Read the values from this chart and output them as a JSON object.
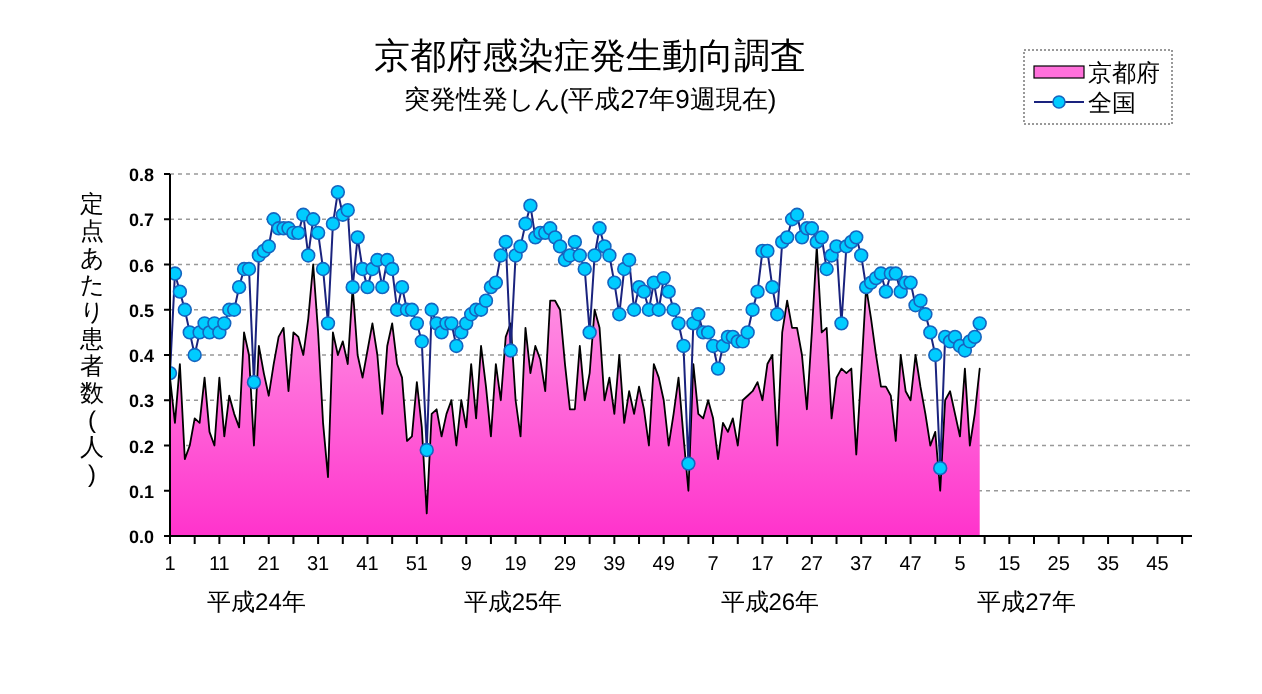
{
  "chart_data": {
    "type": "line",
    "title": "京都府感染症発生動向調査",
    "subtitle": "突発性発しん(平成27年9週現在)",
    "ylabel": "定点あたり患者数(人)",
    "annotations": [
      "平成24年",
      "平成25年",
      "平成26年",
      "平成27年"
    ],
    "categories": [
      "1",
      null,
      null,
      null,
      null,
      null,
      null,
      null,
      null,
      null,
      "11",
      null,
      null,
      null,
      null,
      null,
      null,
      null,
      null,
      null,
      "21",
      null,
      null,
      null,
      null,
      null,
      null,
      null,
      null,
      null,
      "31",
      null,
      null,
      null,
      null,
      null,
      null,
      null,
      null,
      null,
      "41",
      null,
      null,
      null,
      null,
      null,
      null,
      null,
      null,
      null,
      "51",
      null,
      null,
      null,
      null,
      null,
      null,
      null,
      null,
      null,
      "9",
      null,
      null,
      null,
      null,
      null,
      null,
      null,
      null,
      null,
      "19",
      null,
      null,
      null,
      null,
      null,
      null,
      null,
      null,
      null,
      "29",
      null,
      null,
      null,
      null,
      null,
      null,
      null,
      null,
      null,
      "39",
      null,
      null,
      null,
      null,
      null,
      null,
      null,
      null,
      null,
      "49",
      null,
      null,
      null,
      null,
      null,
      null,
      null,
      null,
      null,
      "7",
      null,
      null,
      null,
      null,
      null,
      null,
      null,
      null,
      null,
      "17",
      null,
      null,
      null,
      null,
      null,
      null,
      null,
      null,
      null,
      "27",
      null,
      null,
      null,
      null,
      null,
      null,
      null,
      null,
      null,
      "37",
      null,
      null,
      null,
      null,
      null,
      null,
      null,
      null,
      null,
      "47",
      null,
      null,
      null,
      null,
      null,
      null,
      null,
      null,
      null,
      "5",
      null,
      null,
      null,
      null,
      null,
      null,
      null,
      null,
      null,
      "15",
      null,
      null,
      null,
      null,
      null,
      null,
      null,
      null,
      null,
      "25",
      null,
      null,
      null,
      null,
      null,
      null,
      null,
      null,
      null,
      "35",
      null,
      null,
      null,
      null,
      null,
      null,
      null,
      null,
      null,
      "45",
      null,
      null,
      null,
      null,
      null,
      null,
      null
    ],
    "series": [
      {
        "name": "京都府",
        "type": "area",
        "color": "#ff33cc",
        "values": [
          0.35,
          0.25,
          0.38,
          0.17,
          0.2,
          0.26,
          0.25,
          0.35,
          0.23,
          0.2,
          0.35,
          0.22,
          0.31,
          0.27,
          0.24,
          0.45,
          0.4,
          0.2,
          0.42,
          0.36,
          0.31,
          0.38,
          0.44,
          0.46,
          0.32,
          0.45,
          0.44,
          0.4,
          0.48,
          0.6,
          0.45,
          0.25,
          0.13,
          0.45,
          0.4,
          0.43,
          0.38,
          0.55,
          0.4,
          0.35,
          0.41,
          0.47,
          0.4,
          0.27,
          0.42,
          0.47,
          0.38,
          0.35,
          0.21,
          0.22,
          0.34,
          0.24,
          0.05,
          0.27,
          0.28,
          0.22,
          0.27,
          0.3,
          0.2,
          0.3,
          0.24,
          0.38,
          0.26,
          0.42,
          0.33,
          0.22,
          0.38,
          0.3,
          0.44,
          0.47,
          0.3,
          0.22,
          0.46,
          0.36,
          0.42,
          0.39,
          0.32,
          0.52,
          0.52,
          0.5,
          0.38,
          0.28,
          0.28,
          0.42,
          0.3,
          0.36,
          0.5,
          0.46,
          0.3,
          0.35,
          0.27,
          0.4,
          0.25,
          0.32,
          0.27,
          0.33,
          0.28,
          0.2,
          0.38,
          0.35,
          0.3,
          0.2,
          0.27,
          0.35,
          0.22,
          0.1,
          0.38,
          0.27,
          0.26,
          0.3,
          0.26,
          0.17,
          0.25,
          0.23,
          0.26,
          0.2,
          0.3,
          0.31,
          0.32,
          0.34,
          0.3,
          0.38,
          0.4,
          0.2,
          0.45,
          0.52,
          0.46,
          0.46,
          0.4,
          0.28,
          0.45,
          0.64,
          0.45,
          0.46,
          0.26,
          0.35,
          0.37,
          0.36,
          0.37,
          0.18,
          0.36,
          0.55,
          0.48,
          0.4,
          0.33,
          0.33,
          0.31,
          0.21,
          0.4,
          0.32,
          0.3,
          0.4,
          0.33,
          0.27,
          0.2,
          0.23,
          0.1,
          0.3,
          0.32,
          0.27,
          0.22,
          0.37,
          0.2,
          0.27,
          0.37,
          null,
          null,
          null,
          null,
          null,
          null,
          null,
          null,
          null,
          null,
          null,
          null,
          null,
          null,
          null,
          null,
          null,
          null,
          null,
          null,
          null,
          null,
          null,
          null,
          null,
          null,
          null,
          null,
          null,
          null,
          null,
          null,
          null,
          null,
          null,
          null,
          null,
          null,
          null,
          null,
          null,
          null,
          null
        ]
      },
      {
        "name": "全国",
        "type": "line",
        "color": "#00ccff",
        "marker": "circle",
        "values": [
          0.36,
          0.58,
          0.54,
          0.5,
          0.45,
          0.4,
          0.45,
          0.47,
          0.45,
          0.47,
          0.45,
          0.47,
          0.5,
          0.5,
          0.55,
          0.59,
          0.59,
          0.34,
          0.62,
          0.63,
          0.64,
          0.7,
          0.68,
          0.68,
          0.68,
          0.67,
          0.67,
          0.71,
          0.62,
          0.7,
          0.67,
          0.59,
          0.47,
          0.69,
          0.76,
          0.71,
          0.72,
          0.55,
          0.66,
          0.59,
          0.55,
          0.59,
          0.61,
          0.55,
          0.61,
          0.59,
          0.5,
          0.55,
          0.5,
          0.5,
          0.47,
          0.43,
          0.19,
          0.5,
          0.47,
          0.45,
          0.47,
          0.47,
          0.42,
          0.45,
          0.47,
          0.49,
          0.5,
          0.5,
          0.52,
          0.55,
          0.56,
          0.62,
          0.65,
          0.41,
          0.62,
          0.64,
          0.69,
          0.73,
          0.66,
          0.67,
          0.67,
          0.68,
          0.66,
          0.64,
          0.61,
          0.62,
          0.65,
          0.62,
          0.59,
          0.45,
          0.62,
          0.68,
          0.64,
          0.62,
          0.56,
          0.49,
          0.59,
          0.61,
          0.5,
          0.55,
          0.54,
          0.5,
          0.56,
          0.5,
          0.57,
          0.54,
          0.5,
          0.47,
          0.42,
          0.16,
          0.47,
          0.49,
          0.45,
          0.45,
          0.42,
          0.37,
          0.42,
          0.44,
          0.44,
          0.43,
          0.43,
          0.45,
          0.5,
          0.54,
          0.63,
          0.63,
          0.55,
          0.49,
          0.65,
          0.66,
          0.7,
          0.71,
          0.66,
          0.68,
          0.68,
          0.65,
          0.66,
          0.59,
          0.62,
          0.64,
          0.47,
          0.64,
          0.65,
          0.66,
          0.62,
          0.55,
          0.56,
          0.57,
          0.58,
          0.54,
          0.58,
          0.58,
          0.54,
          0.56,
          0.56,
          0.51,
          0.52,
          0.49,
          0.45,
          0.4,
          0.15,
          0.44,
          0.43,
          0.44,
          0.42,
          0.41,
          0.43,
          0.44,
          0.47,
          null,
          null,
          null,
          null,
          null,
          null,
          null,
          null,
          null,
          null,
          null,
          null,
          null,
          null,
          null,
          null,
          null,
          null,
          null,
          null,
          null,
          null,
          null,
          null,
          null,
          null,
          null,
          null,
          null,
          null,
          null,
          null,
          null,
          null,
          null,
          null,
          null,
          null,
          null,
          null,
          null,
          null,
          null
        ]
      }
    ],
    "ylim": [
      0,
      0.8
    ],
    "yticks": [
      {
        "value": 0,
        "label": "0.0"
      },
      0.1,
      0.2,
      0.3,
      0.4,
      0.5,
      0.6,
      0.7,
      0.8
    ],
    "grid": "y",
    "legend": "top right"
  }
}
